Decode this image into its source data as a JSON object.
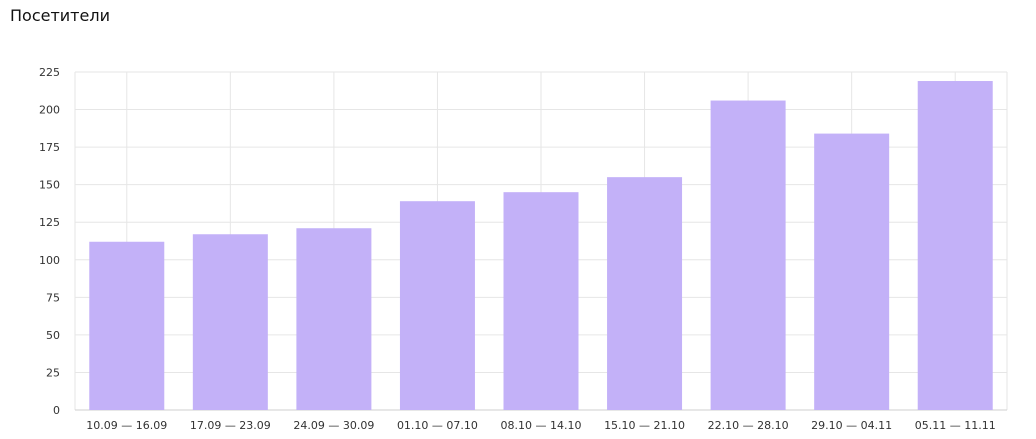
{
  "chart_data": {
    "type": "bar",
    "title": "Посетители",
    "categories": [
      "10.09 — 16.09",
      "17.09 — 23.09",
      "24.09 — 30.09",
      "01.10 — 07.10",
      "08.10 — 14.10",
      "15.10 — 21.10",
      "22.10 — 28.10",
      "29.10 — 04.11",
      "05.11 — 11.11"
    ],
    "series": [
      {
        "values": [
          112,
          117,
          121,
          139,
          145,
          155,
          206,
          184,
          219
        ]
      }
    ],
    "ylim": [
      0,
      225
    ],
    "yticks": [
      0,
      25,
      50,
      75,
      100,
      125,
      150,
      175,
      200,
      225
    ],
    "grid": true,
    "colors": {
      "bar": "#c3b1f8",
      "grid": "#e6e6e6",
      "axis": "#cfcfcf"
    }
  }
}
